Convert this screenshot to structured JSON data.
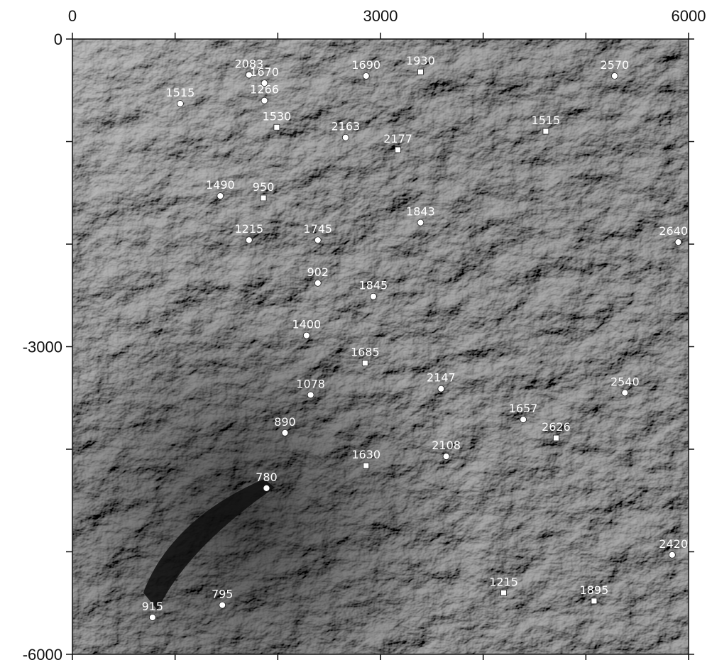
{
  "map": {
    "x_axis": {
      "ticks": [
        {
          "value": 0,
          "label": "0"
        },
        {
          "value": 3000,
          "label": "3000"
        },
        {
          "value": 6000,
          "label": "6000"
        }
      ],
      "range": [
        0,
        6000
      ]
    },
    "y_axis": {
      "ticks": [
        {
          "value": 0,
          "label": "0"
        },
        {
          "value": -3000,
          "label": "-3000"
        },
        {
          "value": -6000,
          "label": "-6000"
        }
      ],
      "range": [
        -6000,
        0
      ]
    },
    "background": "grayscale shaded-relief satellite image of mountainous terrain",
    "points": [
      {
        "label": "2083",
        "x": 1720,
        "y": -350,
        "marker": "circle"
      },
      {
        "label": "1670",
        "x": 1870,
        "y": -430,
        "marker": "circle"
      },
      {
        "label": "1266",
        "x": 1870,
        "y": -600,
        "marker": "circle"
      },
      {
        "label": "1515",
        "x": 1050,
        "y": -630,
        "marker": "circle"
      },
      {
        "label": "1530",
        "x": 1990,
        "y": -860,
        "marker": "square"
      },
      {
        "label": "1690",
        "x": 2860,
        "y": -360,
        "marker": "circle"
      },
      {
        "label": "1930",
        "x": 3390,
        "y": -320,
        "marker": "square"
      },
      {
        "label": "2570",
        "x": 5280,
        "y": -360,
        "marker": "circle"
      },
      {
        "label": "2163",
        "x": 2660,
        "y": -960,
        "marker": "circle"
      },
      {
        "label": "2177",
        "x": 3170,
        "y": -1080,
        "marker": "square"
      },
      {
        "label": "1515",
        "x": 4610,
        "y": -900,
        "marker": "square"
      },
      {
        "label": "1490",
        "x": 1440,
        "y": -1530,
        "marker": "circle"
      },
      {
        "label": "950",
        "x": 1860,
        "y": -1550,
        "marker": "square"
      },
      {
        "label": "1843",
        "x": 3390,
        "y": -1790,
        "marker": "circle"
      },
      {
        "label": "1215",
        "x": 1720,
        "y": -1960,
        "marker": "circle"
      },
      {
        "label": "1745",
        "x": 2390,
        "y": -1960,
        "marker": "circle"
      },
      {
        "label": "2640",
        "x": 5900,
        "y": -1980,
        "marker": "circle"
      },
      {
        "label": "902",
        "x": 2390,
        "y": -2380,
        "marker": "circle"
      },
      {
        "label": "1845",
        "x": 2930,
        "y": -2510,
        "marker": "circle"
      },
      {
        "label": "1400",
        "x": 2280,
        "y": -2890,
        "marker": "circle"
      },
      {
        "label": "1685",
        "x": 2850,
        "y": -3160,
        "marker": "square"
      },
      {
        "label": "1078",
        "x": 2320,
        "y": -3470,
        "marker": "circle"
      },
      {
        "label": "2147",
        "x": 3590,
        "y": -3410,
        "marker": "circle"
      },
      {
        "label": "2540",
        "x": 5380,
        "y": -3450,
        "marker": "circle"
      },
      {
        "label": "1657",
        "x": 4390,
        "y": -3710,
        "marker": "circle"
      },
      {
        "label": "2626",
        "x": 4710,
        "y": -3890,
        "marker": "square"
      },
      {
        "label": "890",
        "x": 2070,
        "y": -3840,
        "marker": "circle"
      },
      {
        "label": "2108",
        "x": 3640,
        "y": -4070,
        "marker": "circle"
      },
      {
        "label": "1630",
        "x": 2860,
        "y": -4160,
        "marker": "square"
      },
      {
        "label": "780",
        "x": 1890,
        "y": -4380,
        "marker": "circle"
      },
      {
        "label": "2420",
        "x": 5840,
        "y": -5030,
        "marker": "circle"
      },
      {
        "label": "1215",
        "x": 4200,
        "y": -5400,
        "marker": "square"
      },
      {
        "label": "1895",
        "x": 5080,
        "y": -5480,
        "marker": "square"
      },
      {
        "label": "915",
        "x": 780,
        "y": -5640,
        "marker": "circle"
      },
      {
        "label": "795",
        "x": 1460,
        "y": -5520,
        "marker": "circle"
      }
    ]
  }
}
